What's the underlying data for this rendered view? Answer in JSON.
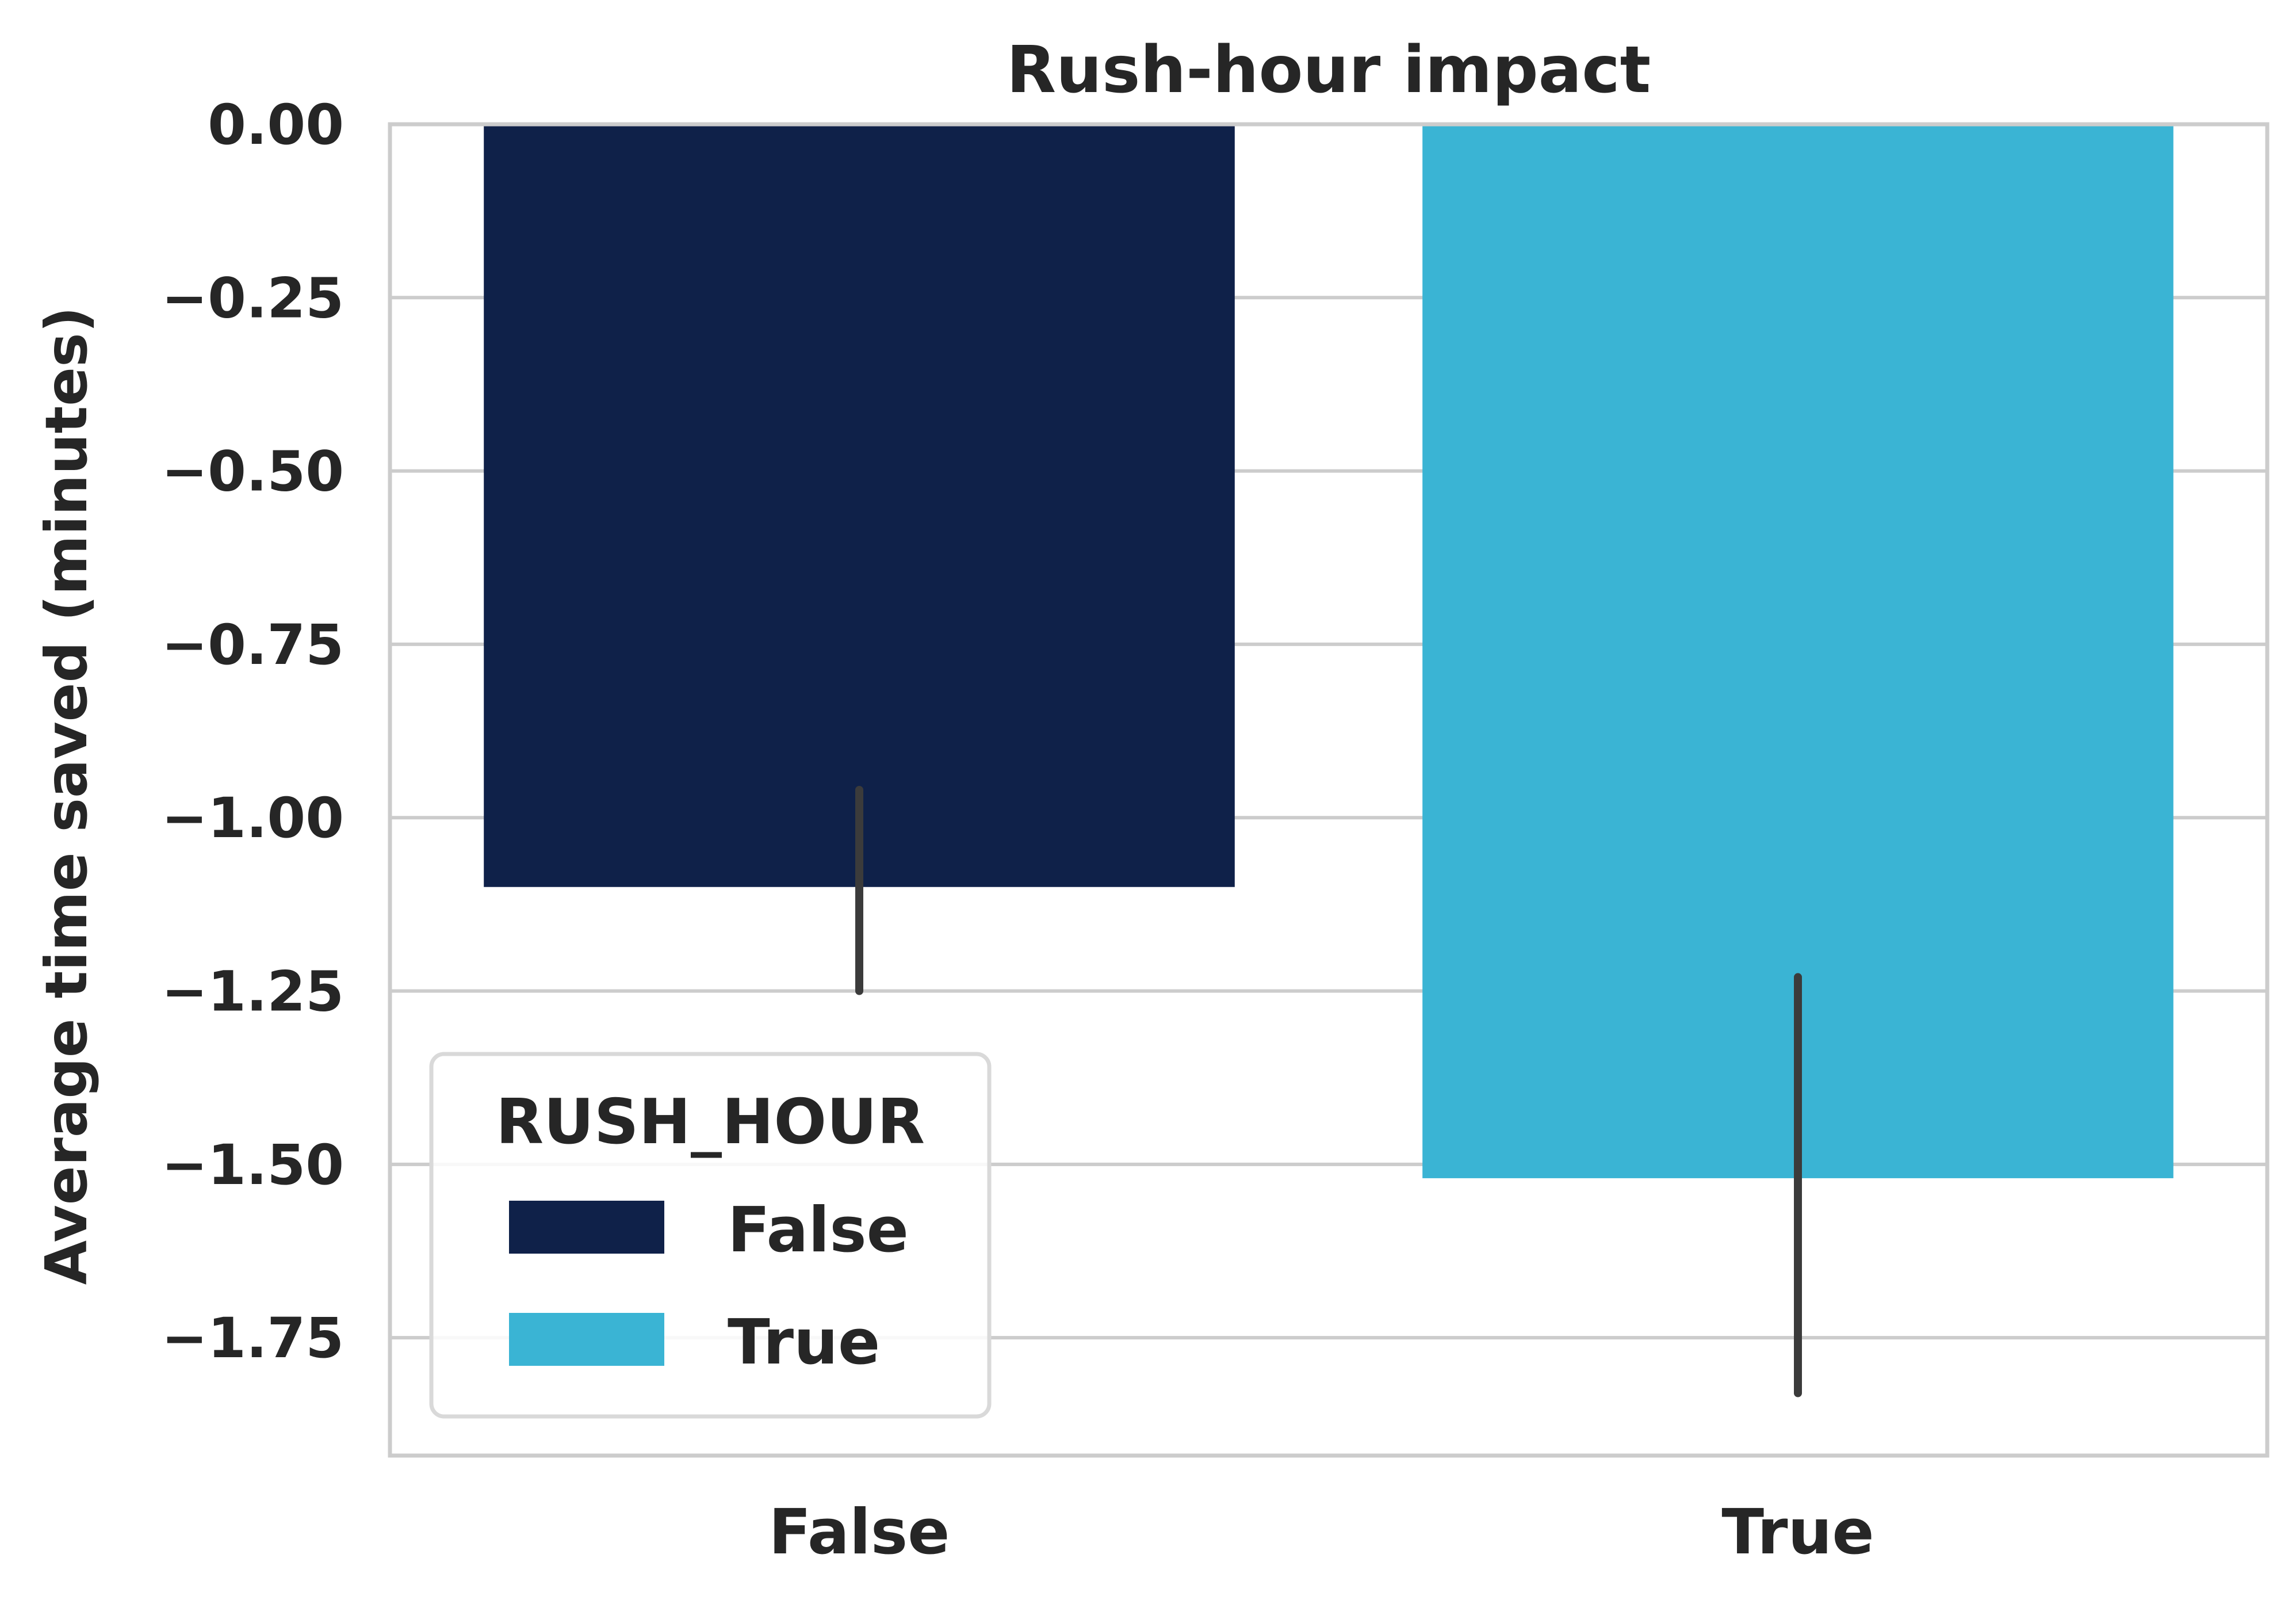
{
  "chart_data": {
    "type": "bar",
    "title": "Rush-hour impact",
    "xlabel": "",
    "ylabel": "Average time saved (minutes)",
    "categories": [
      "False",
      "True"
    ],
    "values": [
      -1.1,
      -1.52
    ],
    "error_bars": [
      {
        "low": -1.25,
        "high": -0.96
      },
      {
        "low": -1.83,
        "high": -1.23
      }
    ],
    "colors": [
      "#0f2149",
      "#3ab4d4"
    ],
    "ylim": [
      -1.92,
      0.0
    ],
    "yticks": [
      0.0,
      -0.25,
      -0.5,
      -0.75,
      -1.0,
      -1.25,
      -1.5,
      -1.75
    ],
    "ytick_labels": [
      "0.00",
      "−0.25",
      "−0.50",
      "−0.75",
      "−1.00",
      "−1.25",
      "−1.50",
      "−1.75"
    ],
    "grid": true,
    "legend": {
      "title": "RUSH_HOUR",
      "placement": "lower-left",
      "entries": [
        {
          "label": "False",
          "color": "#0f2149"
        },
        {
          "label": "True",
          "color": "#3ab4d4"
        }
      ]
    }
  }
}
